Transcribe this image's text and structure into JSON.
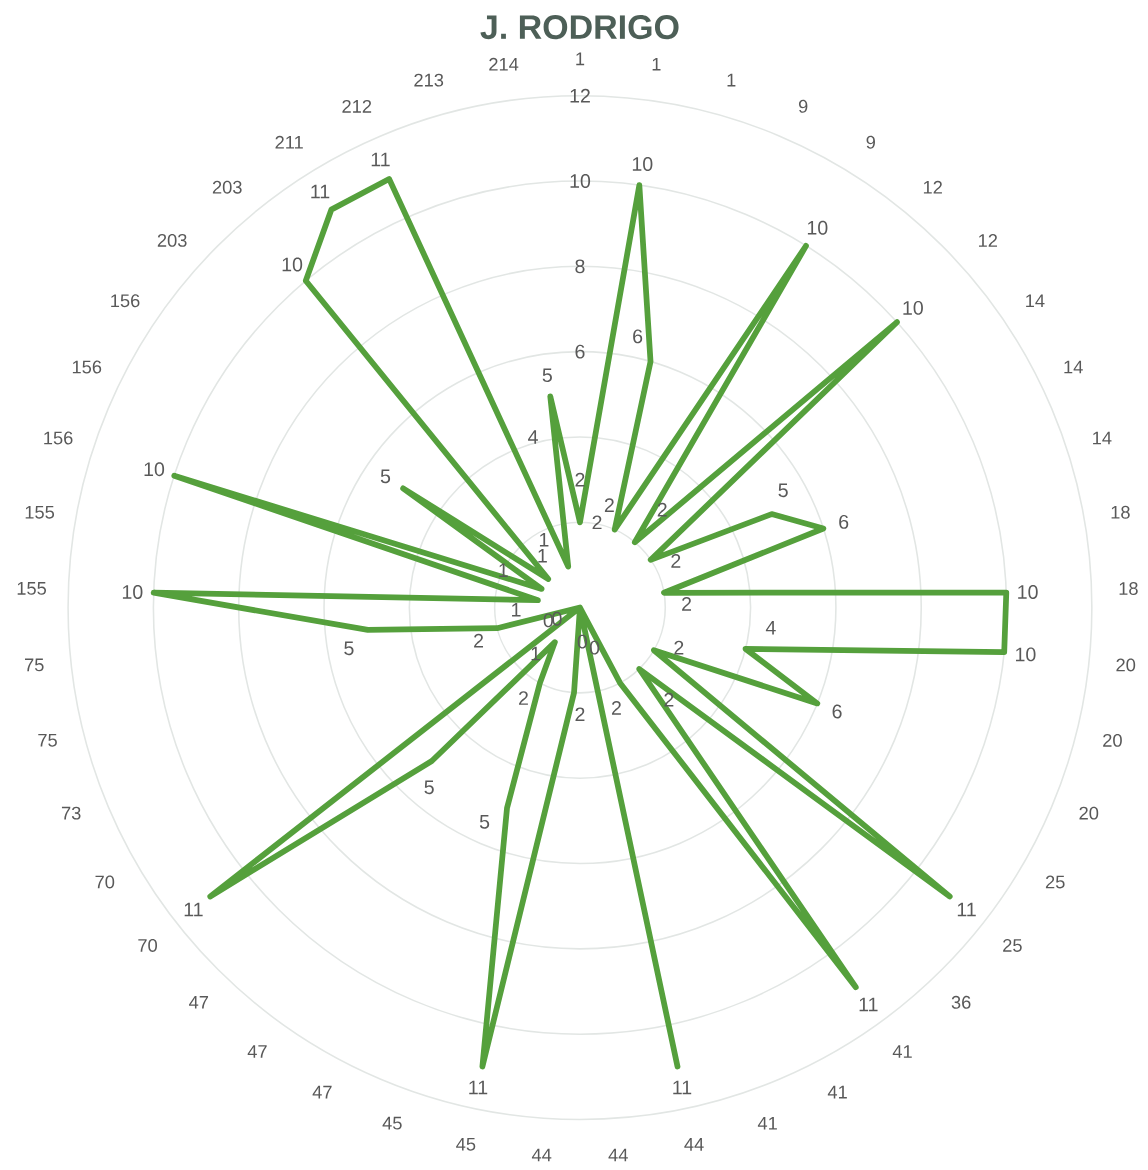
{
  "chart_data": {
    "type": "radar",
    "title": "J. RODRIGO",
    "categories": [
      "1",
      "1",
      "1",
      "9",
      "9",
      "12",
      "12",
      "14",
      "14",
      "14",
      "18",
      "18",
      "20",
      "20",
      "20",
      "25",
      "25",
      "36",
      "41",
      "41",
      "41",
      "44",
      "44",
      "44",
      "45",
      "45",
      "47",
      "47",
      "47",
      "70",
      "70",
      "73",
      "75",
      "75",
      "155",
      "155",
      "156",
      "156",
      "156",
      "203",
      "203",
      "211",
      "212",
      "213",
      "214"
    ],
    "series": [
      {
        "color": "#55a03c",
        "values": [
          2,
          10,
          6,
          2,
          10,
          2,
          10,
          2,
          5,
          6,
          2,
          10,
          10,
          4,
          6,
          2,
          11,
          2,
          11,
          2,
          0,
          11,
          0,
          2,
          11,
          5,
          2,
          1,
          5,
          11,
          0,
          0,
          2,
          5,
          10,
          1,
          10,
          1,
          5,
          1,
          10,
          11,
          11,
          1,
          5
        ]
      }
    ],
    "ylim": [
      0,
      12
    ],
    "yticks": [
      2,
      4,
      6,
      8,
      10,
      12
    ],
    "grid": true,
    "data_labels": true
  }
}
